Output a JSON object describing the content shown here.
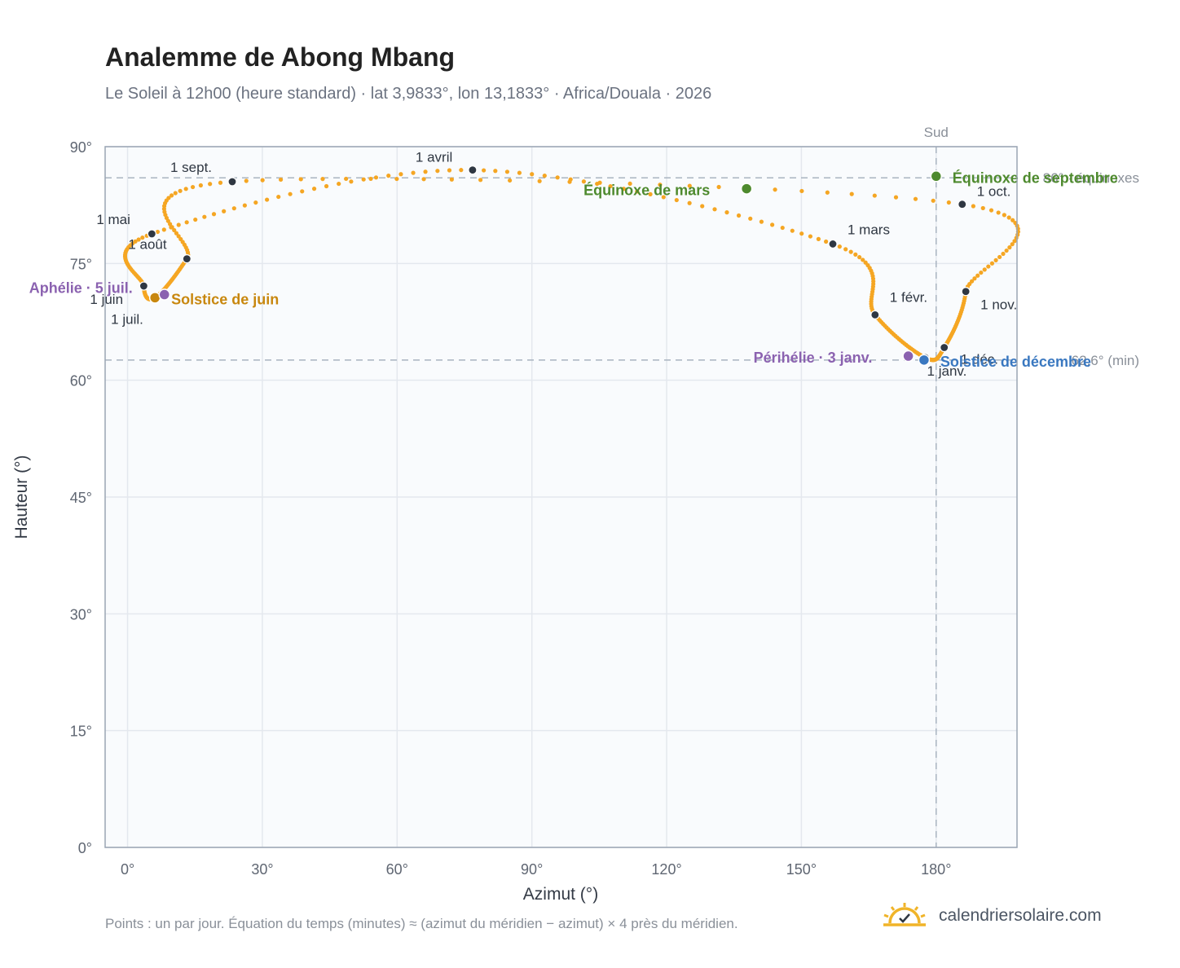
{
  "header": {
    "title": "Analemme de Abong Mbang",
    "subtitle": "Le Soleil à 12h00 (heure standard) · lat 3,9833°, lon 13,1833° · Africa/Douala · 2026"
  },
  "footer": {
    "note": "Points : un par jour. Équation du temps (minutes) ≈ (azimut du méridien − azimut) × 4 près du méridien.",
    "brand": "calendriersolaire.com"
  },
  "colors": {
    "curve": "#f5a623",
    "month_marker": "#2f3742",
    "equinox": "#4e8a2e",
    "june_solstice": "#c8870e",
    "december_solstice": "#3a78c0",
    "apsis": "#8b62b0",
    "brand_icon": "#f0b429"
  },
  "chart_data": {
    "type": "scatter",
    "xlabel": "Azimut (°)",
    "ylabel": "Hauteur (°)",
    "xlim": [
      -5,
      198
    ],
    "ylim": [
      0,
      90
    ],
    "x_ticks": [
      "0°",
      "30°",
      "60°",
      "90°",
      "120°",
      "150°",
      "180°"
    ],
    "y_ticks": [
      "0°",
      "15°",
      "30°",
      "45°",
      "60°",
      "75°",
      "90°"
    ],
    "grid": true,
    "series_note": "un point par jour",
    "month_markers": [
      {
        "label": "1 janv.",
        "azimuth": 177.6,
        "altitude": 62.9
      },
      {
        "label": "1 févr.",
        "azimuth": 166.4,
        "altitude": 68.4
      },
      {
        "label": "1 mars",
        "azimuth": 157.0,
        "altitude": 77.5
      },
      {
        "label": "1 avril",
        "azimuth": 76.8,
        "altitude": 87.0
      },
      {
        "label": "1 mai",
        "azimuth": 5.4,
        "altitude": 78.8
      },
      {
        "label": "1 juin",
        "azimuth": 3.6,
        "altitude": 72.1
      },
      {
        "label": "1 juil.",
        "azimuth": 6.1,
        "altitude": 70.6
      },
      {
        "label": "1 août",
        "azimuth": 13.2,
        "altitude": 75.6
      },
      {
        "label": "1 sept.",
        "azimuth": 23.3,
        "altitude": 85.5
      },
      {
        "label": "1 oct.",
        "azimuth": 185.8,
        "altitude": 82.6
      },
      {
        "label": "1 nov.",
        "azimuth": 186.6,
        "altitude": 71.4
      },
      {
        "label": "1 déc.",
        "azimuth": 181.8,
        "altitude": 64.2
      }
    ],
    "events": [
      {
        "label": "Équinoxe de mars",
        "azimuth": 137.8,
        "altitude": 84.6,
        "kind": "equinox"
      },
      {
        "label": "Équinoxe de septembre",
        "azimuth": 180.0,
        "altitude": 86.2,
        "kind": "equinox"
      },
      {
        "label": "Solstice de juin",
        "azimuth": 6.1,
        "altitude": 70.6,
        "kind": "june_solstice"
      },
      {
        "label": "Solstice de décembre",
        "azimuth": 177.3,
        "altitude": 62.6,
        "kind": "december_solstice"
      },
      {
        "label": "Aphélie · 5 juil.",
        "azimuth": 8.2,
        "altitude": 71.0,
        "kind": "apsis"
      },
      {
        "label": "Périhélie · 3 janv.",
        "azimuth": 173.8,
        "altitude": 63.1,
        "kind": "apsis"
      }
    ],
    "reference_lines": [
      {
        "axis": "x",
        "value": 180,
        "label": "Sud"
      },
      {
        "axis": "y",
        "value": 86.0,
        "label": "86° · équinoxes"
      },
      {
        "axis": "y",
        "value": 62.6,
        "label": "62,6° (min)"
      }
    ]
  }
}
